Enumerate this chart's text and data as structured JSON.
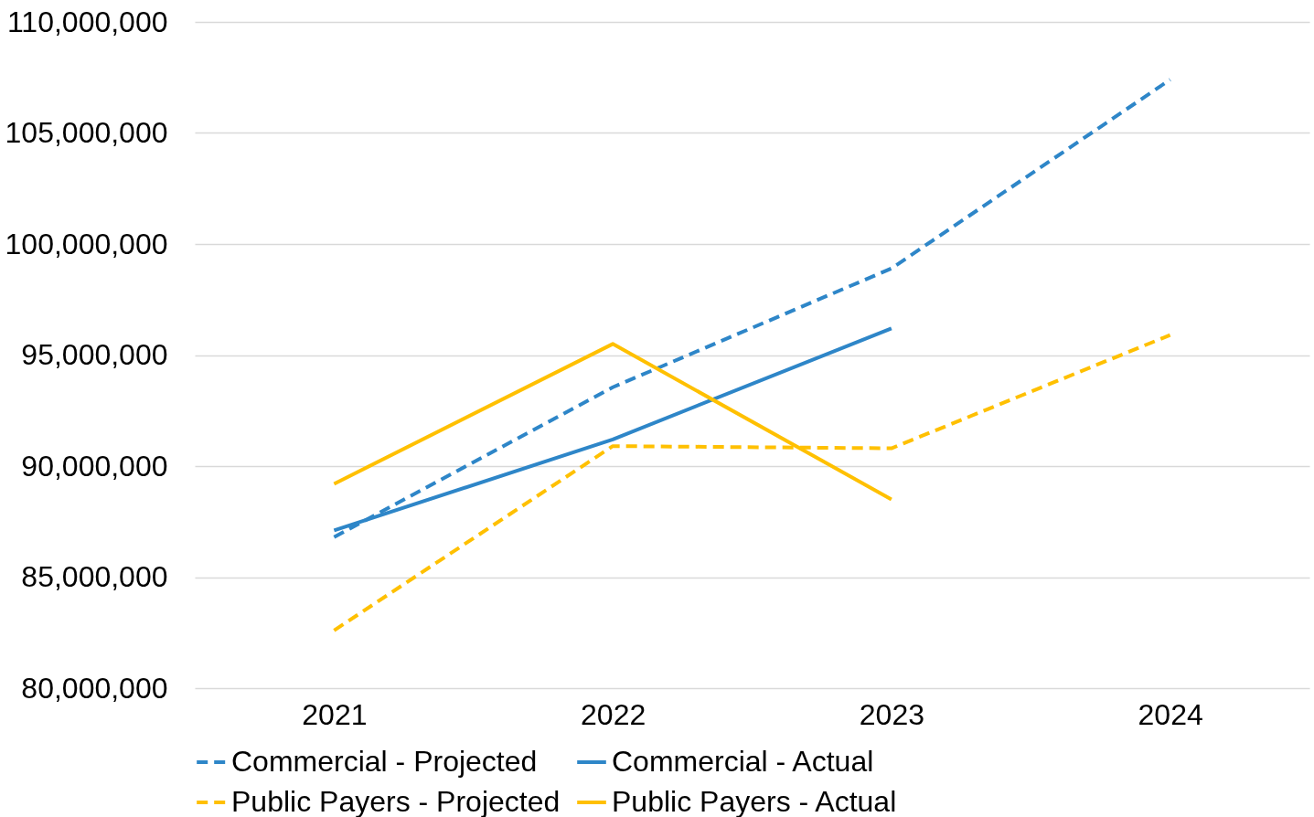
{
  "chart_data": {
    "type": "line",
    "categories": [
      "2021",
      "2022",
      "2023",
      "2024"
    ],
    "series": [
      {
        "name": "Commercial - Projected",
        "color": "#2e86c8",
        "line_style": "dashed",
        "values": [
          86800000,
          93550000,
          98900000,
          107400000
        ]
      },
      {
        "name": "Commercial - Actual",
        "color": "#2e86c8",
        "line_style": "solid",
        "values": [
          87100000,
          91200000,
          96200000,
          null
        ]
      },
      {
        "name": "Public Payers - Projected",
        "color": "#ffc000",
        "line_style": "dashed",
        "values": [
          82600000,
          90900000,
          90800000,
          95900000
        ]
      },
      {
        "name": "Public Payers - Actual",
        "color": "#ffc000",
        "line_style": "solid",
        "values": [
          89200000,
          95500000,
          88500000,
          null
        ]
      }
    ],
    "ylim": [
      80000000,
      110000000
    ],
    "yticks": [
      {
        "value": 80000000,
        "label": "80,000,000"
      },
      {
        "value": 85000000,
        "label": "85,000,000"
      },
      {
        "value": 90000000,
        "label": "90,000,000"
      },
      {
        "value": 95000000,
        "label": "95,000,000"
      },
      {
        "value": 100000000,
        "label": "100,000,000"
      },
      {
        "value": 105000000,
        "label": "105,000,000"
      },
      {
        "value": 110000000,
        "label": "110,000,000"
      }
    ],
    "grid": "y",
    "legend": "bottom",
    "marker": "none"
  }
}
